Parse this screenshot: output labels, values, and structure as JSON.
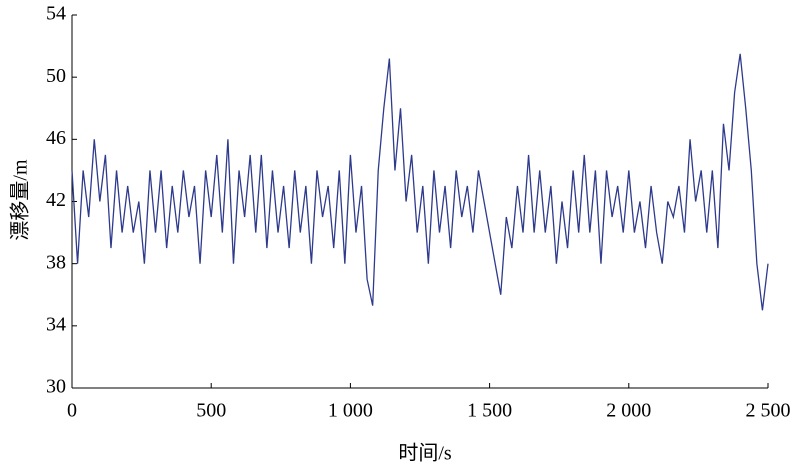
{
  "chart_data": {
    "type": "line",
    "x_label": "时间/s",
    "y_label": "漂移量/m",
    "x": [
      0,
      20,
      40,
      60,
      80,
      100,
      120,
      140,
      160,
      180,
      200,
      220,
      240,
      260,
      280,
      300,
      320,
      340,
      360,
      380,
      400,
      420,
      440,
      460,
      480,
      500,
      520,
      540,
      560,
      580,
      600,
      620,
      640,
      660,
      680,
      700,
      720,
      740,
      760,
      780,
      800,
      820,
      840,
      860,
      880,
      900,
      920,
      940,
      960,
      980,
      1000,
      1020,
      1040,
      1060,
      1080,
      1100,
      1120,
      1140,
      1160,
      1180,
      1200,
      1220,
      1240,
      1260,
      1280,
      1300,
      1320,
      1340,
      1360,
      1380,
      1400,
      1420,
      1440,
      1460,
      1480,
      1500,
      1520,
      1540,
      1560,
      1580,
      1600,
      1620,
      1640,
      1660,
      1680,
      1700,
      1720,
      1740,
      1760,
      1780,
      1800,
      1820,
      1840,
      1860,
      1880,
      1900,
      1920,
      1940,
      1960,
      1980,
      2000,
      2020,
      2040,
      2060,
      2080,
      2100,
      2120,
      2140,
      2160,
      2180,
      2200,
      2220,
      2240,
      2260,
      2280,
      2300,
      2320,
      2340,
      2360,
      2380,
      2400,
      2420,
      2440,
      2460,
      2480,
      2500
    ],
    "series": [
      {
        "color": "#2e3a8c",
        "values": [
          44,
          38,
          44,
          41,
          46,
          42,
          45,
          39,
          44,
          40,
          43,
          40,
          42,
          38,
          44,
          40,
          44,
          39,
          43,
          40,
          44,
          41,
          43,
          38,
          44,
          41,
          45,
          40,
          46,
          38,
          44,
          41,
          45,
          40,
          45,
          39,
          44,
          40,
          43,
          39,
          44,
          40,
          43,
          38,
          44,
          41,
          43,
          39,
          44,
          38,
          45,
          40,
          43,
          37,
          35.3,
          44,
          48,
          51.2,
          44,
          48,
          42,
          45,
          40,
          43,
          38,
          44,
          40,
          43,
          39,
          44,
          41,
          43,
          40,
          44,
          42,
          40,
          38,
          36,
          41,
          39,
          43,
          40,
          45,
          40,
          44,
          40,
          43,
          38,
          42,
          39,
          44,
          40,
          45,
          40,
          44,
          38,
          44,
          41,
          43,
          40,
          44,
          40,
          42,
          39,
          43,
          40,
          38,
          42,
          41,
          43,
          40,
          46,
          42,
          44,
          40,
          44,
          39,
          47,
          44,
          49,
          51.5,
          48,
          44,
          38,
          35,
          38
        ]
      }
    ],
    "xlim": [
      0,
      2500
    ],
    "ylim": [
      30,
      54
    ],
    "xticks": [
      0,
      500,
      {
        "value": 1000,
        "label": "1 000"
      },
      {
        "value": 1500,
        "label": "1 500"
      },
      {
        "value": 2000,
        "label": "2 000"
      },
      {
        "value": 2500,
        "label": "2 500"
      }
    ],
    "yticks": [
      30,
      34,
      38,
      42,
      46,
      50,
      54
    ]
  }
}
